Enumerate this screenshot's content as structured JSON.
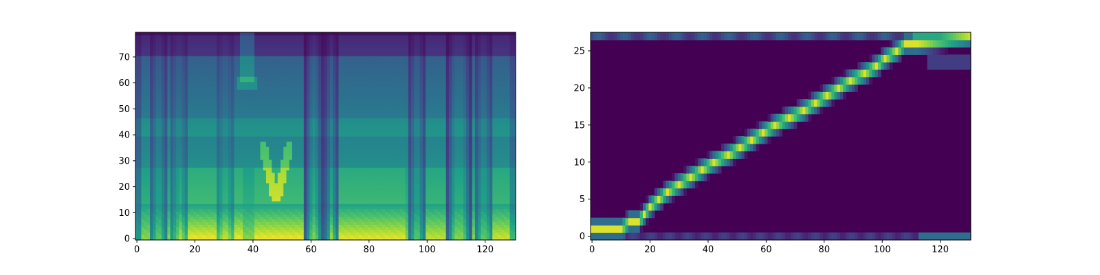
{
  "chart_data": [
    {
      "type": "heatmap",
      "title": "",
      "xlabel": "",
      "ylabel": "",
      "xlim": [
        0,
        131
      ],
      "ylim": [
        0,
        80
      ],
      "xticks": [
        0,
        20,
        40,
        60,
        80,
        100,
        120
      ],
      "yticks": [
        0,
        10,
        20,
        30,
        40,
        50,
        60,
        70
      ],
      "colormap": "viridis",
      "description_values": "mel spectrogram, 80 mel bins x 131 frames; high energy in low bins during voiced segments"
    },
    {
      "type": "heatmap",
      "title": "",
      "xlabel": "",
      "ylabel": "",
      "xlim": [
        0,
        131
      ],
      "ylim": [
        0,
        28
      ],
      "xticks": [
        0,
        20,
        40,
        60,
        80,
        100,
        120
      ],
      "yticks": [
        0,
        5,
        10,
        15,
        20,
        25
      ],
      "colormap": "viridis",
      "alignment_path": [
        [
          0,
          1
        ],
        [
          10,
          1
        ],
        [
          13,
          2
        ],
        [
          16,
          2
        ],
        [
          18,
          3
        ],
        [
          20,
          4
        ],
        [
          23,
          5
        ],
        [
          26,
          6
        ],
        [
          30,
          7
        ],
        [
          34,
          8
        ],
        [
          38,
          9
        ],
        [
          42,
          10
        ],
        [
          47,
          11
        ],
        [
          51,
          12
        ],
        [
          55,
          13
        ],
        [
          59,
          14
        ],
        [
          63,
          15
        ],
        [
          68,
          16
        ],
        [
          73,
          17
        ],
        [
          77,
          18
        ],
        [
          81,
          19
        ],
        [
          85,
          20
        ],
        [
          89,
          21
        ],
        [
          94,
          22
        ],
        [
          98,
          23
        ],
        [
          101,
          24
        ],
        [
          105,
          25
        ],
        [
          108,
          26
        ],
        [
          112,
          26
        ],
        [
          131,
          27
        ]
      ]
    }
  ],
  "colors": {
    "viridis": [
      "#440154",
      "#46327e",
      "#365c8d",
      "#277f8e",
      "#1fa187",
      "#4ac16d",
      "#a0da39",
      "#fde725"
    ]
  }
}
